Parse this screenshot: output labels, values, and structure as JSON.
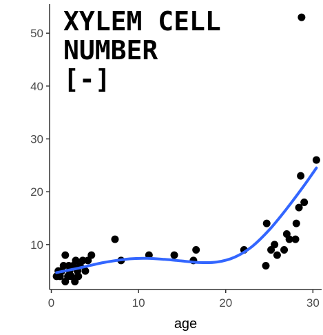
{
  "chart_data": {
    "type": "scatter",
    "title_lines": [
      "XYLEM CELL",
      "NUMBER",
      "[-]"
    ],
    "xlabel": "age",
    "ylabel": "",
    "xlim": [
      -0.2,
      31
    ],
    "ylim": [
      1.5,
      55.5
    ],
    "x_ticks": [
      0,
      10,
      20,
      30
    ],
    "y_ticks": [
      10,
      20,
      30,
      40,
      50
    ],
    "grid": false,
    "colors": {
      "points": "#000000",
      "trend": "#3366ff",
      "axis": "#333333"
    },
    "points": [
      [
        0.6,
        4
      ],
      [
        0.8,
        5
      ],
      [
        1.0,
        4
      ],
      [
        1.2,
        5
      ],
      [
        1.4,
        6
      ],
      [
        1.6,
        3
      ],
      [
        1.6,
        8
      ],
      [
        1.9,
        4
      ],
      [
        2.0,
        6
      ],
      [
        2.1,
        5
      ],
      [
        2.3,
        4
      ],
      [
        2.5,
        6
      ],
      [
        2.7,
        3
      ],
      [
        2.8,
        7
      ],
      [
        3.0,
        5
      ],
      [
        3.1,
        4
      ],
      [
        3.3,
        6
      ],
      [
        3.6,
        7
      ],
      [
        3.9,
        5
      ],
      [
        4.2,
        7
      ],
      [
        4.6,
        8
      ],
      [
        7.3,
        11
      ],
      [
        8.0,
        7
      ],
      [
        11.2,
        8
      ],
      [
        14.1,
        8
      ],
      [
        16.3,
        7
      ],
      [
        16.6,
        9
      ],
      [
        22.1,
        9
      ],
      [
        24.6,
        6
      ],
      [
        24.7,
        14
      ],
      [
        25.2,
        9
      ],
      [
        25.6,
        10
      ],
      [
        25.9,
        8
      ],
      [
        26.7,
        9
      ],
      [
        27.0,
        12
      ],
      [
        27.3,
        11
      ],
      [
        28.0,
        11
      ],
      [
        28.1,
        14
      ],
      [
        28.4,
        17
      ],
      [
        28.6,
        23
      ],
      [
        28.7,
        53
      ],
      [
        29.0,
        18
      ],
      [
        30.4,
        26
      ]
    ],
    "trend": [
      [
        0.6,
        4.7
      ],
      [
        3,
        5.5
      ],
      [
        6,
        6.6
      ],
      [
        9,
        7.3
      ],
      [
        11,
        7.4
      ],
      [
        13,
        7.2
      ],
      [
        15,
        6.9
      ],
      [
        17,
        6.6
      ],
      [
        19,
        6.7
      ],
      [
        21,
        7.6
      ],
      [
        23,
        9.6
      ],
      [
        25,
        12.8
      ],
      [
        27,
        16.8
      ],
      [
        29,
        21.2
      ],
      [
        30.4,
        24.5
      ]
    ]
  }
}
